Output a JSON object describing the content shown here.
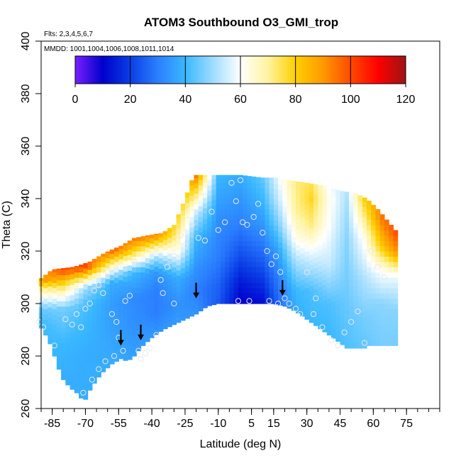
{
  "chart_data": {
    "type": "heatmap",
    "title": "ATOM3 Southbound O3_GMI_trop",
    "flights_text": "Flts: 2,3,4,5,6,7",
    "mmdd_text": "MMDD: 1001,1004,1006,1008,1011,1014",
    "xlabel": "Latitude (deg N)",
    "ylabel": "Theta (C)",
    "xlim": [
      -90,
      90
    ],
    "ylim": [
      260,
      400
    ],
    "x_major_ticks": [
      -85,
      -70,
      -55,
      -40,
      -25,
      -10,
      5,
      15,
      30,
      45,
      60,
      75
    ],
    "x_tick_labels": [
      "-85",
      "-70",
      "-55",
      "-40",
      "-25",
      "-10",
      "5",
      "15",
      "30",
      "45",
      "60",
      "75"
    ],
    "x_minor_step": 5,
    "y_ticks": [
      260,
      280,
      300,
      320,
      340,
      360,
      380,
      400
    ],
    "y_tick_labels": [
      "260",
      "280",
      "300",
      "320",
      "340",
      "360",
      "380",
      "400"
    ],
    "colorbar": {
      "min": 0,
      "max": 120,
      "ticks": [
        0,
        20,
        40,
        60,
        80,
        100,
        120
      ],
      "tick_labels": [
        "0",
        "20",
        "40",
        "60",
        "80",
        "100",
        "120"
      ],
      "colors": [
        "#7a1fff",
        "#0000cc",
        "#0a3ee6",
        "#2b7fff",
        "#39b8ff",
        "#9edcff",
        "#ffffff",
        "#fff3a0",
        "#ffd000",
        "#ff9900",
        "#ff4a00",
        "#ff0000",
        "#9c1414"
      ]
    },
    "field": {
      "lower_boundary": [
        [
          -91,
          292
        ],
        [
          -88,
          288
        ],
        [
          -85,
          283
        ],
        [
          -83,
          277
        ],
        [
          -80,
          271
        ],
        [
          -77,
          268
        ],
        [
          -74,
          266
        ],
        [
          -71,
          263
        ],
        [
          -69,
          264
        ],
        [
          -68,
          267
        ],
        [
          -65,
          271
        ],
        [
          -62,
          274
        ],
        [
          -58,
          277
        ],
        [
          -54,
          279
        ],
        [
          -51,
          278
        ],
        [
          -48,
          280
        ],
        [
          -44,
          284
        ],
        [
          -40,
          287
        ],
        [
          -35,
          290
        ],
        [
          -30,
          292
        ],
        [
          -25,
          294
        ],
        [
          -20,
          296
        ],
        [
          -15,
          299
        ],
        [
          -10,
          300
        ],
        [
          0,
          300
        ],
        [
          10,
          300
        ],
        [
          15,
          300
        ],
        [
          20,
          299
        ],
        [
          25,
          297
        ],
        [
          30,
          294
        ],
        [
          35,
          291
        ],
        [
          40,
          288
        ],
        [
          45,
          285
        ],
        [
          48,
          283
        ],
        [
          55,
          283
        ],
        [
          57,
          283
        ],
        [
          57,
          284
        ],
        [
          70,
          284
        ]
      ],
      "upper_boundary": [
        [
          -91,
          309
        ],
        [
          -85,
          313
        ],
        [
          -75,
          314
        ],
        [
          -68,
          316
        ],
        [
          -62,
          319
        ],
        [
          -57,
          321
        ],
        [
          -54,
          322
        ],
        [
          -48,
          325
        ],
        [
          -42,
          326
        ],
        [
          -35,
          327
        ],
        [
          -30,
          330
        ],
        [
          -25,
          340
        ],
        [
          -22,
          347
        ],
        [
          -20,
          349
        ],
        [
          -10,
          349
        ],
        [
          0,
          349
        ],
        [
          10,
          348
        ],
        [
          17,
          348
        ],
        [
          22,
          347
        ],
        [
          30,
          346
        ],
        [
          37,
          345
        ],
        [
          45,
          343
        ],
        [
          52,
          342
        ],
        [
          57,
          340
        ],
        [
          62,
          336
        ],
        [
          66,
          332
        ],
        [
          70,
          328
        ]
      ],
      "columns": [
        {
          "lat": -91,
          "profile": [
            [
              292,
              40
            ],
            [
              298,
              45
            ],
            [
              302,
              58
            ],
            [
              306,
              72
            ],
            [
              309,
              90
            ]
          ]
        },
        {
          "lat": -80,
          "profile": [
            [
              271,
              38
            ],
            [
              285,
              40
            ],
            [
              298,
              46
            ],
            [
              303,
              62
            ],
            [
              308,
              80
            ],
            [
              313,
              100
            ]
          ]
        },
        {
          "lat": -70,
          "profile": [
            [
              264,
              38
            ],
            [
              280,
              38
            ],
            [
              292,
              40
            ],
            [
              300,
              42
            ],
            [
              306,
              50
            ],
            [
              310,
              75
            ],
            [
              314,
              100
            ]
          ]
        },
        {
          "lat": -58,
          "profile": [
            [
              277,
              38
            ],
            [
              290,
              36
            ],
            [
              300,
              35
            ],
            [
              308,
              38
            ],
            [
              312,
              55
            ],
            [
              318,
              85
            ],
            [
              321,
              100
            ]
          ]
        },
        {
          "lat": -48,
          "profile": [
            [
              280,
              36
            ],
            [
              292,
              33
            ],
            [
              302,
              32
            ],
            [
              312,
              40
            ],
            [
              318,
              70
            ],
            [
              325,
              95
            ]
          ]
        },
        {
          "lat": -38,
          "profile": [
            [
              287,
              35
            ],
            [
              296,
              30
            ],
            [
              305,
              30
            ],
            [
              312,
              34
            ],
            [
              318,
              52
            ],
            [
              324,
              82
            ],
            [
              327,
              95
            ]
          ]
        },
        {
          "lat": -28,
          "profile": [
            [
              291,
              36
            ],
            [
              300,
              33
            ],
            [
              310,
              38
            ],
            [
              320,
              62
            ],
            [
              330,
              74
            ],
            [
              340,
              85
            ]
          ]
        },
        {
          "lat": -20,
          "profile": [
            [
              296,
              34
            ],
            [
              305,
              30
            ],
            [
              315,
              34
            ],
            [
              325,
              40
            ],
            [
              335,
              55
            ],
            [
              345,
              82
            ],
            [
              349,
              95
            ]
          ]
        },
        {
          "lat": -10,
          "profile": [
            [
              300,
              24
            ],
            [
              308,
              26
            ],
            [
              318,
              30
            ],
            [
              330,
              32
            ],
            [
              340,
              36
            ],
            [
              349,
              40
            ]
          ]
        },
        {
          "lat": 0,
          "profile": [
            [
              300,
              10
            ],
            [
              308,
              14
            ],
            [
              318,
              22
            ],
            [
              330,
              30
            ],
            [
              340,
              34
            ],
            [
              349,
              38
            ]
          ]
        },
        {
          "lat": 10,
          "profile": [
            [
              300,
              12
            ],
            [
              308,
              18
            ],
            [
              318,
              26
            ],
            [
              330,
              34
            ],
            [
              340,
              40
            ],
            [
              348,
              44
            ]
          ]
        },
        {
          "lat": 17,
          "profile": [
            [
              299,
              26
            ],
            [
              310,
              30
            ],
            [
              320,
              36
            ],
            [
              330,
              46
            ],
            [
              340,
              54
            ],
            [
              348,
              58
            ]
          ]
        },
        {
          "lat": 25,
          "profile": [
            [
              297,
              38
            ],
            [
              305,
              40
            ],
            [
              315,
              50
            ],
            [
              325,
              62
            ],
            [
              335,
              70
            ],
            [
              345,
              72
            ]
          ]
        },
        {
          "lat": 32,
          "profile": [
            [
              293,
              40
            ],
            [
              305,
              42
            ],
            [
              318,
              56
            ],
            [
              330,
              72
            ],
            [
              340,
              78
            ],
            [
              346,
              75
            ]
          ]
        },
        {
          "lat": 40,
          "profile": [
            [
              288,
              40
            ],
            [
              300,
              42
            ],
            [
              315,
              54
            ],
            [
              330,
              60
            ],
            [
              340,
              62
            ],
            [
              344,
              60
            ]
          ]
        },
        {
          "lat": 48,
          "profile": [
            [
              283,
              42
            ],
            [
              295,
              44
            ],
            [
              310,
              46
            ],
            [
              325,
              48
            ],
            [
              342,
              52
            ]
          ]
        },
        {
          "lat": 56,
          "profile": [
            [
              283,
              44
            ],
            [
              295,
              46
            ],
            [
              310,
              52
            ],
            [
              325,
              62
            ],
            [
              340,
              80
            ]
          ]
        },
        {
          "lat": 64,
          "profile": [
            [
              284,
              46
            ],
            [
              300,
              48
            ],
            [
              312,
              60
            ],
            [
              322,
              82
            ],
            [
              333,
              95
            ]
          ]
        },
        {
          "lat": 70,
          "profile": [
            [
              284,
              46
            ],
            [
              298,
              48
            ],
            [
              310,
              58
            ],
            [
              320,
              90
            ],
            [
              328,
              100
            ]
          ]
        }
      ]
    },
    "data_points": [
      [
        -91,
        293
      ],
      [
        -89,
        291
      ],
      [
        -84,
        284
      ],
      [
        -79,
        294
      ],
      [
        -76,
        292
      ],
      [
        -74,
        296
      ],
      [
        -72,
        291
      ],
      [
        -70,
        298
      ],
      [
        -68,
        300
      ],
      [
        -66,
        305
      ],
      [
        -64,
        307
      ],
      [
        -62,
        304
      ],
      [
        -60,
        312
      ],
      [
        -58,
        296
      ],
      [
        -56,
        293
      ],
      [
        -55,
        287
      ],
      [
        -53,
        282
      ],
      [
        -52,
        301
      ],
      [
        -50,
        303
      ],
      [
        -48,
        316
      ],
      [
        -46,
        282
      ],
      [
        -45,
        279
      ],
      [
        -43,
        281
      ],
      [
        -41,
        283
      ],
      [
        -38,
        288
      ],
      [
        -35,
        304
      ],
      [
        -33,
        314
      ],
      [
        -30,
        318
      ],
      [
        -27,
        326
      ],
      [
        -25,
        322
      ],
      [
        -22,
        330
      ],
      [
        -19,
        325
      ],
      [
        -16,
        324
      ],
      [
        -13,
        335
      ],
      [
        -10,
        328
      ],
      [
        -7,
        331
      ],
      [
        -4,
        346
      ],
      [
        -2,
        339
      ],
      [
        0,
        347
      ],
      [
        1,
        331
      ],
      [
        3,
        330
      ],
      [
        6,
        333
      ],
      [
        8,
        338
      ],
      [
        10,
        327
      ],
      [
        12,
        320
      ],
      [
        14,
        315
      ],
      [
        16,
        318
      ],
      [
        18,
        312
      ],
      [
        20,
        302
      ],
      [
        22,
        300
      ],
      [
        25,
        298
      ],
      [
        27,
        296
      ],
      [
        30,
        312
      ],
      [
        34,
        302
      ],
      [
        37,
        291
      ],
      [
        41,
        286
      ],
      [
        44,
        284
      ],
      [
        47,
        289
      ],
      [
        50,
        293
      ],
      [
        53,
        297
      ],
      [
        56,
        285
      ],
      [
        59,
        320
      ],
      [
        62,
        314
      ],
      [
        65,
        310
      ],
      [
        -71,
        266
      ],
      [
        -67,
        271
      ],
      [
        -64,
        275
      ],
      [
        -61,
        278
      ],
      [
        -57,
        280
      ],
      [
        -1,
        301
      ],
      [
        4,
        301
      ],
      [
        13,
        301
      ],
      [
        17,
        300
      ],
      [
        33,
        296
      ],
      [
        -36,
        309
      ],
      [
        -30,
        300
      ]
    ],
    "arrows": [
      [
        -54,
        284
      ],
      [
        -45,
        286
      ],
      [
        -20,
        302
      ],
      [
        19,
        303
      ]
    ]
  }
}
